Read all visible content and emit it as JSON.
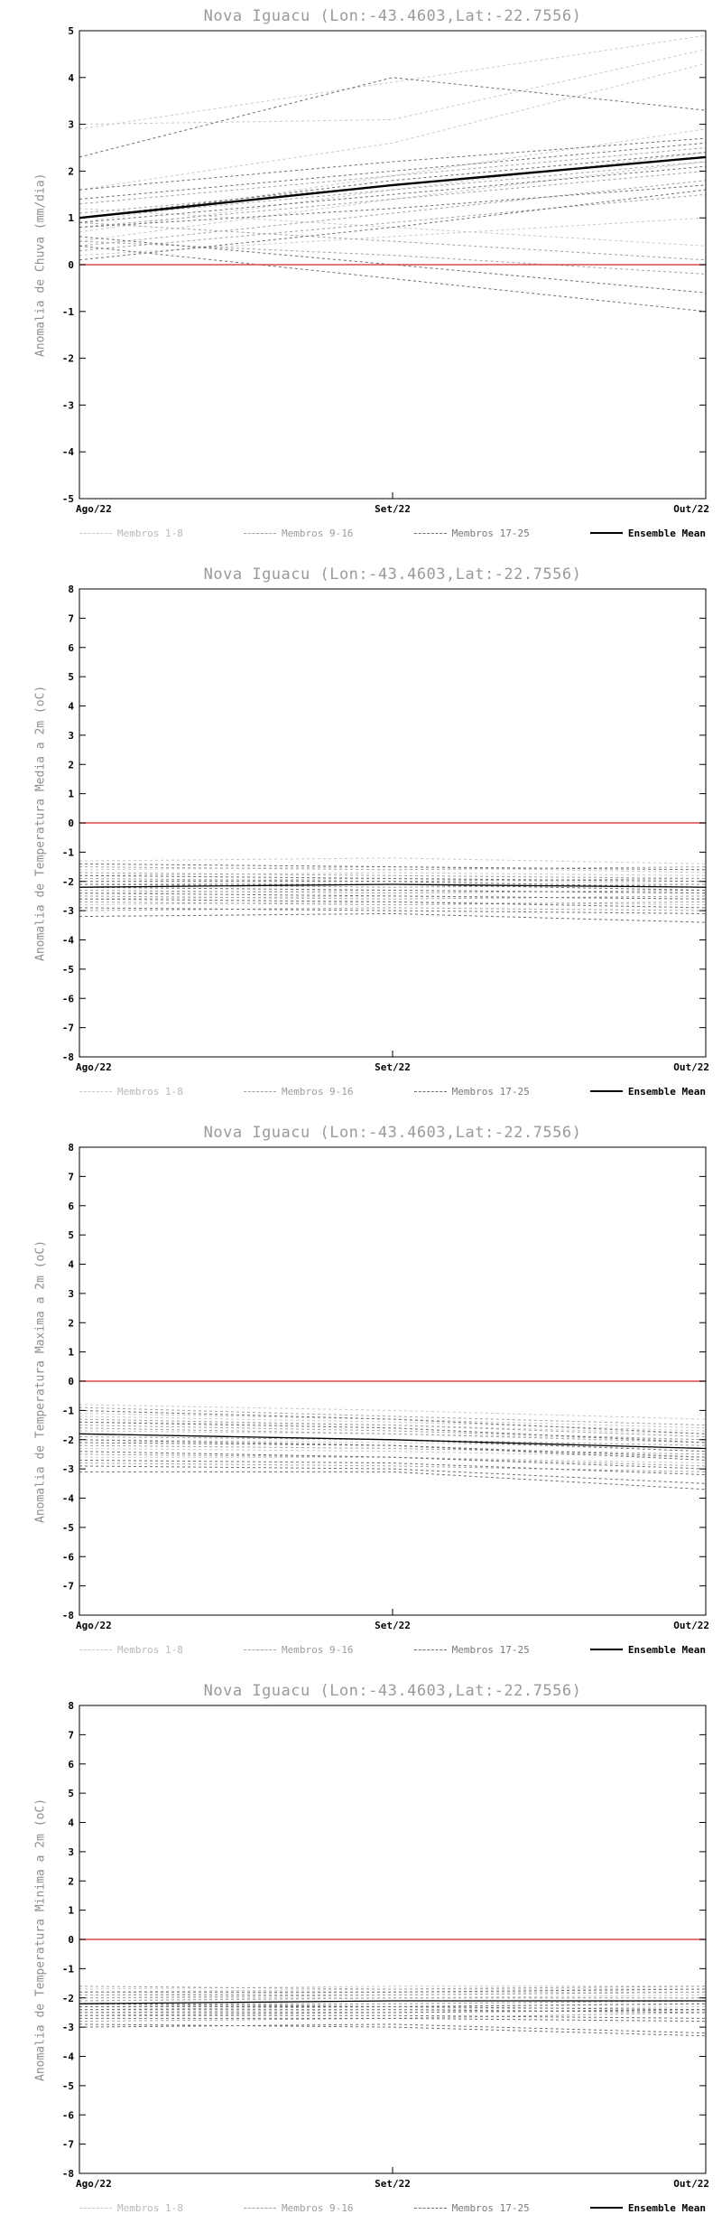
{
  "page": {
    "background": "#ffffff"
  },
  "chart_data": [
    {
      "type": "line",
      "title": "Nova Iguacu (Lon:-43.4603,Lat:-22.7556)",
      "ylabel": "Anomalia de Chuva (mm/dia)",
      "x_ticklabels": [
        "Ago/22",
        "Set/22",
        "Out/22"
      ],
      "ylim": [
        -5,
        5
      ],
      "ytick_step": 1,
      "grid": false,
      "legend_position": "bottom",
      "zero_line": {
        "value": 0,
        "color": "#e04848"
      },
      "legend": [
        "Membros 1-8",
        "Membros 9-16",
        "Membros 17-25",
        "Ensemble Mean"
      ],
      "series": [
        {
          "name": "Membros 1-8",
          "color": "#c8c8c8",
          "dash": true,
          "width": 1,
          "members": [
            [
              3.0,
              3.1,
              4.6
            ],
            [
              2.9,
              3.9,
              4.9
            ],
            [
              1.6,
              2.6,
              4.3
            ],
            [
              0.9,
              1.9,
              2.9
            ],
            [
              0.5,
              1.4,
              2.2
            ],
            [
              1.2,
              0.8,
              0.4
            ],
            [
              0.7,
              1.6,
              2.4
            ],
            [
              0.2,
              0.6,
              1.0
            ]
          ]
        },
        {
          "name": "Membros 9-16",
          "color": "#a2a2a2",
          "dash": true,
          "width": 1,
          "members": [
            [
              1.0,
              1.6,
              2.2
            ],
            [
              0.8,
              1.4,
              2.0
            ],
            [
              0.5,
              0.2,
              -0.2
            ],
            [
              1.3,
              1.9,
              2.5
            ],
            [
              0.4,
              1.1,
              1.8
            ],
            [
              0.9,
              0.5,
              0.1
            ],
            [
              1.1,
              1.7,
              2.3
            ],
            [
              0.3,
              0.9,
              1.5
            ]
          ]
        },
        {
          "name": "Membros 17-25",
          "color": "#6e6e6e",
          "dash": true,
          "width": 1,
          "members": [
            [
              1.0,
              1.8,
              2.4
            ],
            [
              0.9,
              1.5,
              2.1
            ],
            [
              0.6,
              0.0,
              -0.6
            ],
            [
              0.4,
              -0.3,
              -1.0
            ],
            [
              2.3,
              4.0,
              3.3
            ],
            [
              1.4,
              2.0,
              2.6
            ],
            [
              0.8,
              1.2,
              1.7
            ],
            [
              0.1,
              0.8,
              1.6
            ],
            [
              1.6,
              2.2,
              2.7
            ]
          ]
        },
        {
          "name": "Ensemble Mean",
          "color": "#000000",
          "dash": false,
          "width": 2.4,
          "members": [
            [
              1.0,
              1.7,
              2.3
            ]
          ]
        }
      ]
    },
    {
      "type": "line",
      "title": "Nova Iguacu (Lon:-43.4603,Lat:-22.7556)",
      "ylabel": "Anomalia de Temperatura Media a 2m (oC)",
      "x_ticklabels": [
        "Ago/22",
        "Set/22",
        "Out/22"
      ],
      "ylim": [
        -8,
        8
      ],
      "ytick_step": 1,
      "grid": false,
      "legend_position": "bottom",
      "zero_line": {
        "value": 0,
        "color": "#e04848"
      },
      "legend": [
        "Membros 1-8",
        "Membros 9-16",
        "Membros 17-25",
        "Ensemble Mean"
      ],
      "series": [
        {
          "name": "Membros 1-8",
          "color": "#c8c8c8",
          "dash": true,
          "width": 1,
          "members": [
            [
              -1.3,
              -1.2,
              -1.4
            ],
            [
              -1.6,
              -1.5,
              -1.7
            ],
            [
              -1.8,
              -1.7,
              -1.8
            ],
            [
              -2.0,
              -1.9,
              -2.1
            ],
            [
              -2.2,
              -2.1,
              -2.2
            ],
            [
              -2.4,
              -2.3,
              -2.4
            ],
            [
              -2.6,
              -2.5,
              -2.6
            ],
            [
              -2.8,
              -2.7,
              -2.8
            ]
          ]
        },
        {
          "name": "Membros 9-16",
          "color": "#a2a2a2",
          "dash": true,
          "width": 1,
          "members": [
            [
              -1.5,
              -1.6,
              -1.5
            ],
            [
              -1.9,
              -2.0,
              -1.9
            ],
            [
              -2.1,
              -2.2,
              -2.1
            ],
            [
              -2.3,
              -2.4,
              -2.3
            ],
            [
              -2.5,
              -2.6,
              -2.5
            ],
            [
              -2.7,
              -2.8,
              -2.7
            ],
            [
              -3.0,
              -2.9,
              -3.0
            ],
            [
              -1.7,
              -1.8,
              -1.9
            ]
          ]
        },
        {
          "name": "Membros 17-25",
          "color": "#6e6e6e",
          "dash": true,
          "width": 1,
          "members": [
            [
              -2.0,
              -2.0,
              -2.2
            ],
            [
              -2.2,
              -2.3,
              -2.4
            ],
            [
              -2.4,
              -2.5,
              -2.6
            ],
            [
              -2.9,
              -3.0,
              -3.1
            ],
            [
              -3.2,
              -3.1,
              -3.4
            ],
            [
              -1.4,
              -1.5,
              -1.6
            ],
            [
              -2.6,
              -2.7,
              -2.9
            ],
            [
              -1.8,
              -1.9,
              -2.0
            ],
            [
              -2.1,
              -2.1,
              -2.3
            ]
          ]
        },
        {
          "name": "Ensemble Mean",
          "color": "#000000",
          "dash": false,
          "width": 1.3,
          "members": [
            [
              -2.2,
              -2.1,
              -2.2
            ]
          ]
        }
      ]
    },
    {
      "type": "line",
      "title": "Nova Iguacu (Lon:-43.4603,Lat:-22.7556)",
      "ylabel": "Anomalia de Temperatura Maxima a 2m (oC)",
      "x_ticklabels": [
        "Ago/22",
        "Set/22",
        "Out/22"
      ],
      "ylim": [
        -8,
        8
      ],
      "ytick_step": 1,
      "grid": false,
      "legend_position": "bottom",
      "zero_line": {
        "value": 0,
        "color": "#e04848"
      },
      "legend": [
        "Membros 1-8",
        "Membros 9-16",
        "Membros 17-25",
        "Ensemble Mean"
      ],
      "series": [
        {
          "name": "Membros 1-8",
          "color": "#c8c8c8",
          "dash": true,
          "width": 1,
          "members": [
            [
              -0.8,
              -1.0,
              -1.3
            ],
            [
              -1.1,
              -1.3,
              -1.6
            ],
            [
              -1.4,
              -1.5,
              -1.8
            ],
            [
              -1.7,
              -1.8,
              -2.0
            ],
            [
              -2.0,
              -2.1,
              -2.3
            ],
            [
              -2.3,
              -2.4,
              -2.6
            ],
            [
              -2.6,
              -2.6,
              -2.8
            ],
            [
              -1.2,
              -1.4,
              -1.7
            ]
          ]
        },
        {
          "name": "Membros 9-16",
          "color": "#a2a2a2",
          "dash": true,
          "width": 1,
          "members": [
            [
              -0.9,
              -1.2,
              -1.5
            ],
            [
              -1.3,
              -1.5,
              -1.9
            ],
            [
              -1.6,
              -1.8,
              -2.1
            ],
            [
              -1.9,
              -2.0,
              -2.2
            ],
            [
              -2.2,
              -2.3,
              -2.5
            ],
            [
              -2.5,
              -2.6,
              -2.9
            ],
            [
              -2.8,
              -2.9,
              -3.1
            ],
            [
              -1.5,
              -1.7,
              -2.0
            ]
          ]
        },
        {
          "name": "Membros 17-25",
          "color": "#6e6e6e",
          "dash": true,
          "width": 1,
          "members": [
            [
              -1.0,
              -1.3,
              -1.8
            ],
            [
              -1.8,
              -2.0,
              -2.4
            ],
            [
              -2.1,
              -2.2,
              -2.6
            ],
            [
              -2.4,
              -2.6,
              -3.0
            ],
            [
              -2.9,
              -3.0,
              -3.5
            ],
            [
              -3.1,
              -3.1,
              -3.7
            ],
            [
              -1.4,
              -1.6,
              -2.1
            ],
            [
              -2.0,
              -2.2,
              -2.7
            ],
            [
              -2.7,
              -2.8,
              -3.2
            ]
          ]
        },
        {
          "name": "Ensemble Mean",
          "color": "#000000",
          "dash": false,
          "width": 1.3,
          "members": [
            [
              -1.8,
              -2.0,
              -2.3
            ]
          ]
        }
      ]
    },
    {
      "type": "line",
      "title": "Nova Iguacu (Lon:-43.4603,Lat:-22.7556)",
      "ylabel": "Anomalia de Temperatura Minima a 2m (oC)",
      "x_ticklabels": [
        "Ago/22",
        "Set/22",
        "Out/22"
      ],
      "ylim": [
        -8,
        8
      ],
      "ytick_step": 1,
      "grid": false,
      "legend_position": "bottom",
      "zero_line": {
        "value": 0,
        "color": "#e04848"
      },
      "legend": [
        "Membros 1-8",
        "Membros 9-16",
        "Membros 17-25",
        "Ensemble Mean"
      ],
      "series": [
        {
          "name": "Membros 1-8",
          "color": "#c8c8c8",
          "dash": true,
          "width": 1,
          "members": [
            [
              -1.7,
              -1.6,
              -1.6
            ],
            [
              -1.9,
              -1.8,
              -1.8
            ],
            [
              -2.1,
              -2.0,
              -1.9
            ],
            [
              -2.3,
              -2.2,
              -2.1
            ],
            [
              -2.5,
              -2.4,
              -2.3
            ],
            [
              -2.0,
              -2.0,
              -2.0
            ],
            [
              -2.2,
              -2.1,
              -2.1
            ],
            [
              -1.8,
              -1.7,
              -1.7
            ]
          ]
        },
        {
          "name": "Membros 9-16",
          "color": "#a2a2a2",
          "dash": true,
          "width": 1,
          "members": [
            [
              -1.6,
              -1.7,
              -1.6
            ],
            [
              -2.0,
              -1.9,
              -1.8
            ],
            [
              -2.2,
              -2.2,
              -2.1
            ],
            [
              -2.4,
              -2.3,
              -2.2
            ],
            [
              -2.6,
              -2.5,
              -2.4
            ],
            [
              -2.8,
              -2.7,
              -2.5
            ],
            [
              -2.1,
              -2.0,
              -2.0
            ],
            [
              -1.9,
              -1.9,
              -1.8
            ]
          ]
        },
        {
          "name": "Membros 17-25",
          "color": "#6e6e6e",
          "dash": true,
          "width": 1,
          "members": [
            [
              -2.3,
              -2.3,
              -2.2
            ],
            [
              -2.5,
              -2.5,
              -2.4
            ],
            [
              -2.7,
              -2.7,
              -2.8
            ],
            [
              -3.0,
              -2.9,
              -3.2
            ],
            [
              -2.9,
              -3.0,
              -3.3
            ],
            [
              -1.8,
              -1.8,
              -1.7
            ],
            [
              -2.4,
              -2.4,
              -2.5
            ],
            [
              -2.2,
              -2.3,
              -2.4
            ],
            [
              -2.6,
              -2.6,
              -2.7
            ]
          ]
        },
        {
          "name": "Ensemble Mean",
          "color": "#000000",
          "dash": false,
          "width": 1.3,
          "members": [
            [
              -2.2,
              -2.1,
              -2.1
            ]
          ]
        }
      ]
    }
  ]
}
